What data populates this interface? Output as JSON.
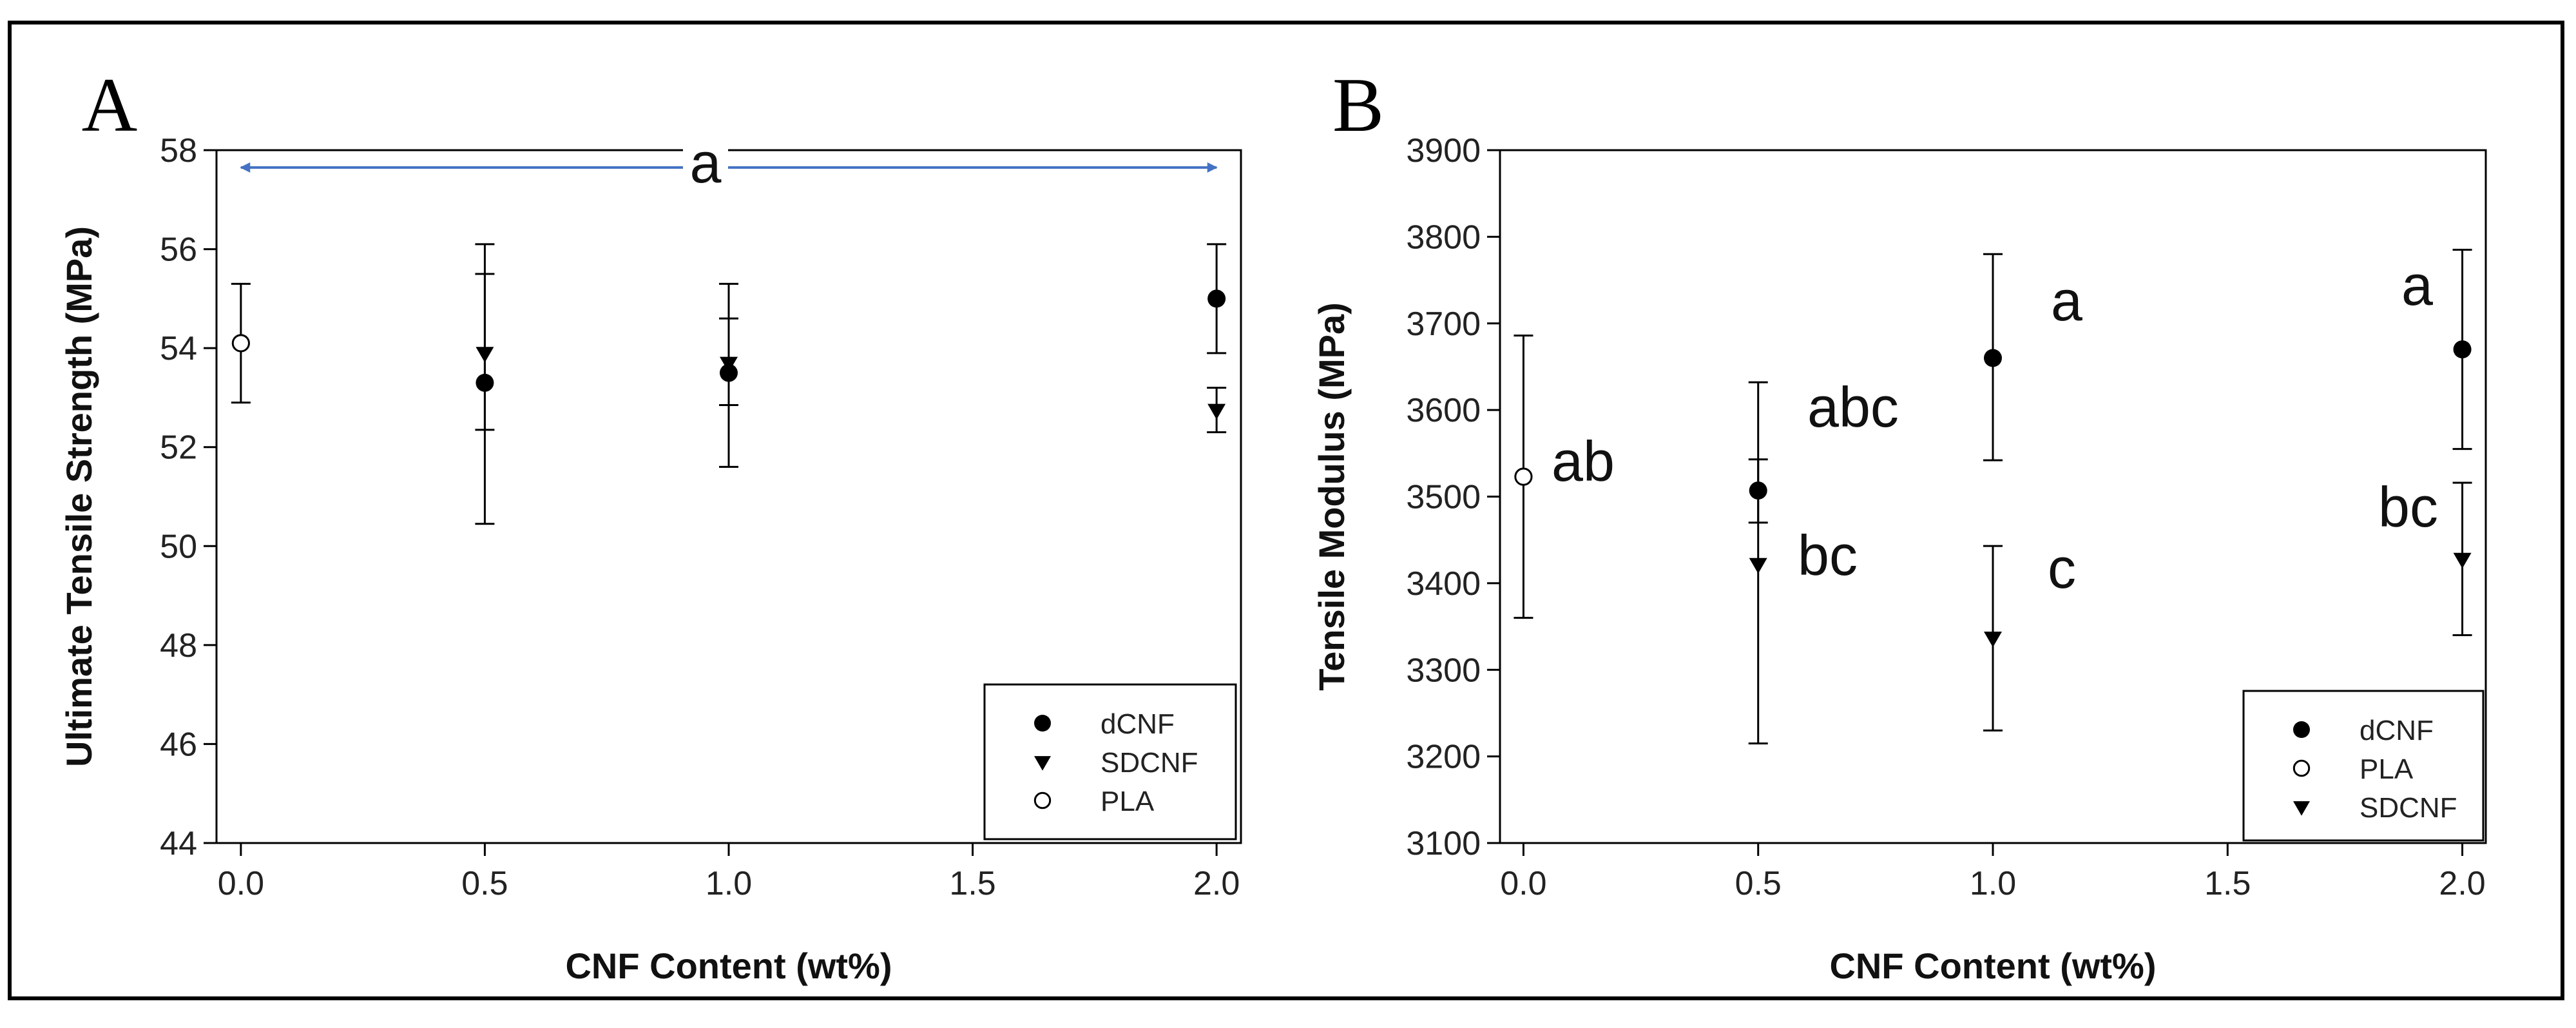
{
  "colors": {
    "axis": "#000000",
    "marker": "#000000",
    "open_marker_fill": "#ffffff",
    "range_arrow": "#4472C4"
  },
  "chart_data": [
    {
      "type": "scatter",
      "panel_label": "A",
      "xlabel": "CNF Content (wt%)",
      "ylabel": "Ultimate Tensile Strength (MPa)",
      "xlim": [
        -0.05,
        2.05
      ],
      "ylim": [
        44,
        58
      ],
      "xticks": [
        "0.0",
        "0.5",
        "1.0",
        "1.5",
        "2.0"
      ],
      "yticks": [
        "44",
        "46",
        "48",
        "50",
        "52",
        "54",
        "56",
        "58"
      ],
      "legend": {
        "position": "bottom-right",
        "entries": [
          {
            "label": "dCNF",
            "marker": "filled-circle"
          },
          {
            "label": "SDCNF",
            "marker": "filled-triangle-down"
          },
          {
            "label": "PLA",
            "marker": "open-circle"
          }
        ]
      },
      "series": [
        {
          "name": "dCNF",
          "marker": "filled-circle",
          "points": [
            {
              "x": 0.5,
              "y": 53.3,
              "err_low": 50.45,
              "err_high": 55.5
            },
            {
              "x": 1.0,
              "y": 53.5,
              "err_low": 51.6,
              "err_high": 54.6
            },
            {
              "x": 2.0,
              "y": 55.0,
              "err_low": 53.9,
              "err_high": 56.1
            }
          ]
        },
        {
          "name": "SDCNF",
          "marker": "filled-triangle-down",
          "points": [
            {
              "x": 0.5,
              "y": 53.9,
              "err_low": 52.35,
              "err_high": 56.1
            },
            {
              "x": 1.0,
              "y": 53.7,
              "err_low": 52.85,
              "err_high": 55.3
            },
            {
              "x": 2.0,
              "y": 52.75,
              "err_low": 52.3,
              "err_high": 53.2
            }
          ]
        },
        {
          "name": "PLA",
          "marker": "open-circle",
          "points": [
            {
              "x": 0.0,
              "y": 54.1,
              "err_low": 52.9,
              "err_high": 55.3
            }
          ]
        }
      ],
      "annotations": [
        {
          "text": "a",
          "type": "double-arrow",
          "x_from": 0.0,
          "x_to": 2.0,
          "y": 57.65
        }
      ]
    },
    {
      "type": "scatter",
      "panel_label": "B",
      "xlabel": "CNF Content (wt%)",
      "ylabel": "Tensile Modulus (MPa)",
      "xlim": [
        -0.05,
        2.05
      ],
      "ylim": [
        3100,
        3900
      ],
      "xticks": [
        "0.0",
        "0.5",
        "1.0",
        "1.5",
        "2.0"
      ],
      "yticks": [
        "3100",
        "3200",
        "3300",
        "3400",
        "3500",
        "3600",
        "3700",
        "3800",
        "3900"
      ],
      "legend": {
        "position": "bottom-right",
        "entries": [
          {
            "label": "dCNF",
            "marker": "filled-circle"
          },
          {
            "label": "PLA",
            "marker": "open-circle"
          },
          {
            "label": "SDCNF",
            "marker": "filled-triangle-down"
          }
        ]
      },
      "series": [
        {
          "name": "dCNF",
          "marker": "filled-circle",
          "points": [
            {
              "x": 0.5,
              "y": 3507,
              "err_low": 3470,
              "err_high": 3543
            },
            {
              "x": 1.0,
              "y": 3660,
              "err_low": 3542,
              "err_high": 3780
            },
            {
              "x": 2.0,
              "y": 3670,
              "err_low": 3555,
              "err_high": 3785
            }
          ]
        },
        {
          "name": "PLA",
          "marker": "open-circle",
          "points": [
            {
              "x": 0.0,
              "y": 3523,
              "err_low": 3360,
              "err_high": 3686
            }
          ]
        },
        {
          "name": "SDCNF",
          "marker": "filled-triangle-down",
          "points": [
            {
              "x": 0.5,
              "y": 3422,
              "err_low": 3215,
              "err_high": 3632
            },
            {
              "x": 1.0,
              "y": 3337,
              "err_low": 3230,
              "err_high": 3443
            },
            {
              "x": 2.0,
              "y": 3428,
              "err_low": 3340,
              "err_high": 3516
            }
          ]
        }
      ],
      "annotations": [
        {
          "text": "ab",
          "x": 0.0,
          "y": 3523
        },
        {
          "text": "abc",
          "x": 0.5,
          "y": 3600
        },
        {
          "text": "bc",
          "x": 0.5,
          "y": 3422
        },
        {
          "text": "a",
          "x": 1.0,
          "y": 3660
        },
        {
          "text": "c",
          "x": 1.0,
          "y": 3337
        },
        {
          "text": "a",
          "x": 2.0,
          "y": 3670
        },
        {
          "text": "bc",
          "x": 2.0,
          "y": 3428
        }
      ]
    }
  ]
}
